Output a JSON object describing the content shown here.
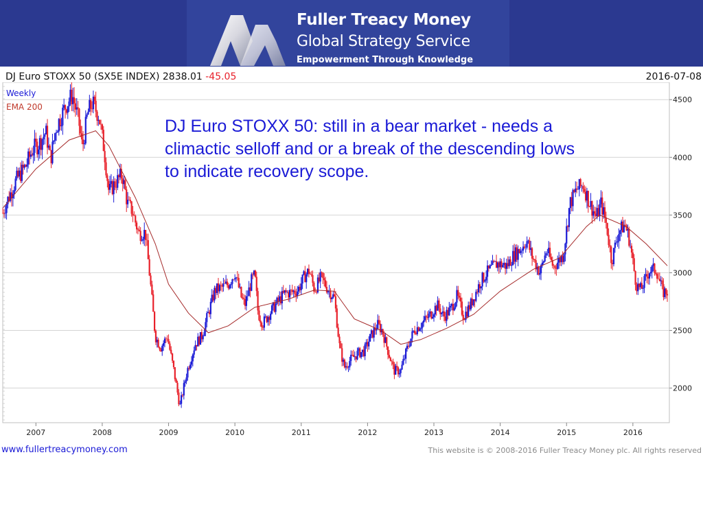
{
  "header": {
    "brand_name": "Fuller Treacy Money",
    "brand_service": "Global Strategy Service",
    "tagline": "Empowerment Through Knowledge",
    "logo_icon": "fuller-treacy-m-logo-icon",
    "banner_color": "#2b3990"
  },
  "chart_header": {
    "title_prefix": "DJ Euro STOXX 50 (SX5E INDEX) 2838.01",
    "change": "-45.05",
    "date": "2016-07-08"
  },
  "annotation": "DJ Euro STOXX 50: still in a bear market - needs a climactic selloff and or a break of the descending lows to indicate recovery scope.",
  "footer": {
    "url": "www.fullertreacymoney.com",
    "copyright": "This website is © 2008-2016 Fuller Treacy Money plc. All rights reserved"
  },
  "chart_data": {
    "type": "line",
    "subtype": "weekly-candlestick",
    "legend": [
      {
        "label": "Weekly",
        "color": "#1a1ad6"
      },
      {
        "label": "EMA 200",
        "color": "#c0392b"
      }
    ],
    "legend_position": "top-left",
    "x_ticks": [
      "2007",
      "2008",
      "2009",
      "2010",
      "2011",
      "2012",
      "2013",
      "2014",
      "2015",
      "2016"
    ],
    "y_ticks": [
      2000,
      2500,
      3000,
      3500,
      4000,
      4500
    ],
    "y_axis_position": "right",
    "xlim": [
      2006.5,
      2016.55
    ],
    "ylim": [
      1700,
      4650
    ],
    "grid": true,
    "colors": {
      "up": "#1a1ad6",
      "down": "#e8202a",
      "ema": "#a52a2a"
    },
    "price_path": [
      [
        2006.5,
        3520
      ],
      [
        2006.58,
        3640
      ],
      [
        2006.7,
        3800
      ],
      [
        2006.85,
        3930
      ],
      [
        2006.95,
        4070
      ],
      [
        2007.05,
        4120
      ],
      [
        2007.15,
        4220
      ],
      [
        2007.22,
        3980
      ],
      [
        2007.3,
        4250
      ],
      [
        2007.45,
        4450
      ],
      [
        2007.55,
        4540
      ],
      [
        2007.65,
        4300
      ],
      [
        2007.7,
        4080
      ],
      [
        2007.78,
        4380
      ],
      [
        2007.85,
        4470
      ],
      [
        2007.95,
        4360
      ],
      [
        2008.03,
        4060
      ],
      [
        2008.1,
        3700
      ],
      [
        2008.2,
        3780
      ],
      [
        2008.3,
        3850
      ],
      [
        2008.38,
        3600
      ],
      [
        2008.45,
        3540
      ],
      [
        2008.55,
        3340
      ],
      [
        2008.65,
        3350
      ],
      [
        2008.72,
        2950
      ],
      [
        2008.8,
        2450
      ],
      [
        2008.88,
        2350
      ],
      [
        2008.98,
        2450
      ],
      [
        2009.08,
        2150
      ],
      [
        2009.17,
        1840
      ],
      [
        2009.28,
        2150
      ],
      [
        2009.4,
        2380
      ],
      [
        2009.5,
        2450
      ],
      [
        2009.6,
        2650
      ],
      [
        2009.7,
        2850
      ],
      [
        2009.8,
        2870
      ],
      [
        2009.9,
        2900
      ],
      [
        2010.0,
        3000
      ],
      [
        2010.1,
        2780
      ],
      [
        2010.15,
        2720
      ],
      [
        2010.25,
        2930
      ],
      [
        2010.3,
        2980
      ],
      [
        2010.35,
        2650
      ],
      [
        2010.42,
        2560
      ],
      [
        2010.55,
        2670
      ],
      [
        2010.65,
        2750
      ],
      [
        2010.75,
        2820
      ],
      [
        2010.85,
        2830
      ],
      [
        2010.95,
        2850
      ],
      [
        2011.05,
        2970
      ],
      [
        2011.12,
        3020
      ],
      [
        2011.2,
        2850
      ],
      [
        2011.3,
        2960
      ],
      [
        2011.4,
        2860
      ],
      [
        2011.5,
        2780
      ],
      [
        2011.58,
        2350
      ],
      [
        2011.65,
        2180
      ],
      [
        2011.75,
        2250
      ],
      [
        2011.85,
        2300
      ],
      [
        2011.95,
        2320
      ],
      [
        2012.05,
        2450
      ],
      [
        2012.15,
        2550
      ],
      [
        2012.22,
        2500
      ],
      [
        2012.32,
        2300
      ],
      [
        2012.4,
        2150
      ],
      [
        2012.5,
        2150
      ],
      [
        2012.6,
        2350
      ],
      [
        2012.7,
        2500
      ],
      [
        2012.8,
        2550
      ],
      [
        2012.95,
        2640
      ],
      [
        2013.05,
        2720
      ],
      [
        2013.15,
        2620
      ],
      [
        2013.25,
        2680
      ],
      [
        2013.35,
        2800
      ],
      [
        2013.45,
        2620
      ],
      [
        2013.55,
        2720
      ],
      [
        2013.7,
        2920
      ],
      [
        2013.8,
        3000
      ],
      [
        2013.95,
        3080
      ],
      [
        2014.1,
        3060
      ],
      [
        2014.2,
        3150
      ],
      [
        2014.3,
        3200
      ],
      [
        2014.4,
        3280
      ],
      [
        2014.48,
        3140
      ],
      [
        2014.6,
        3000
      ],
      [
        2014.7,
        3200
      ],
      [
        2014.8,
        3050
      ],
      [
        2014.95,
        3150
      ],
      [
        2015.05,
        3600
      ],
      [
        2015.15,
        3720
      ],
      [
        2015.25,
        3760
      ],
      [
        2015.35,
        3600
      ],
      [
        2015.45,
        3480
      ],
      [
        2015.52,
        3600
      ],
      [
        2015.6,
        3420
      ],
      [
        2015.68,
        3100
      ],
      [
        2015.78,
        3350
      ],
      [
        2015.88,
        3420
      ],
      [
        2015.95,
        3280
      ],
      [
        2016.05,
        2900
      ],
      [
        2016.12,
        2850
      ],
      [
        2016.25,
        3020
      ],
      [
        2016.35,
        3030
      ],
      [
        2016.45,
        2830
      ],
      [
        2016.52,
        2838
      ]
    ],
    "ema_path": [
      [
        2006.5,
        3560
      ],
      [
        2007.0,
        3900
      ],
      [
        2007.5,
        4150
      ],
      [
        2007.9,
        4230
      ],
      [
        2008.1,
        4100
      ],
      [
        2008.5,
        3650
      ],
      [
        2008.8,
        3250
      ],
      [
        2009.0,
        2900
      ],
      [
        2009.3,
        2650
      ],
      [
        2009.6,
        2480
      ],
      [
        2009.9,
        2540
      ],
      [
        2010.3,
        2700
      ],
      [
        2010.8,
        2770
      ],
      [
        2011.2,
        2850
      ],
      [
        2011.5,
        2840
      ],
      [
        2011.8,
        2600
      ],
      [
        2012.2,
        2500
      ],
      [
        2012.5,
        2380
      ],
      [
        2012.8,
        2420
      ],
      [
        2013.2,
        2520
      ],
      [
        2013.6,
        2640
      ],
      [
        2014.0,
        2840
      ],
      [
        2014.5,
        3030
      ],
      [
        2014.9,
        3130
      ],
      [
        2015.3,
        3400
      ],
      [
        2015.5,
        3500
      ],
      [
        2015.9,
        3400
      ],
      [
        2016.2,
        3250
      ],
      [
        2016.52,
        3060
      ]
    ]
  }
}
